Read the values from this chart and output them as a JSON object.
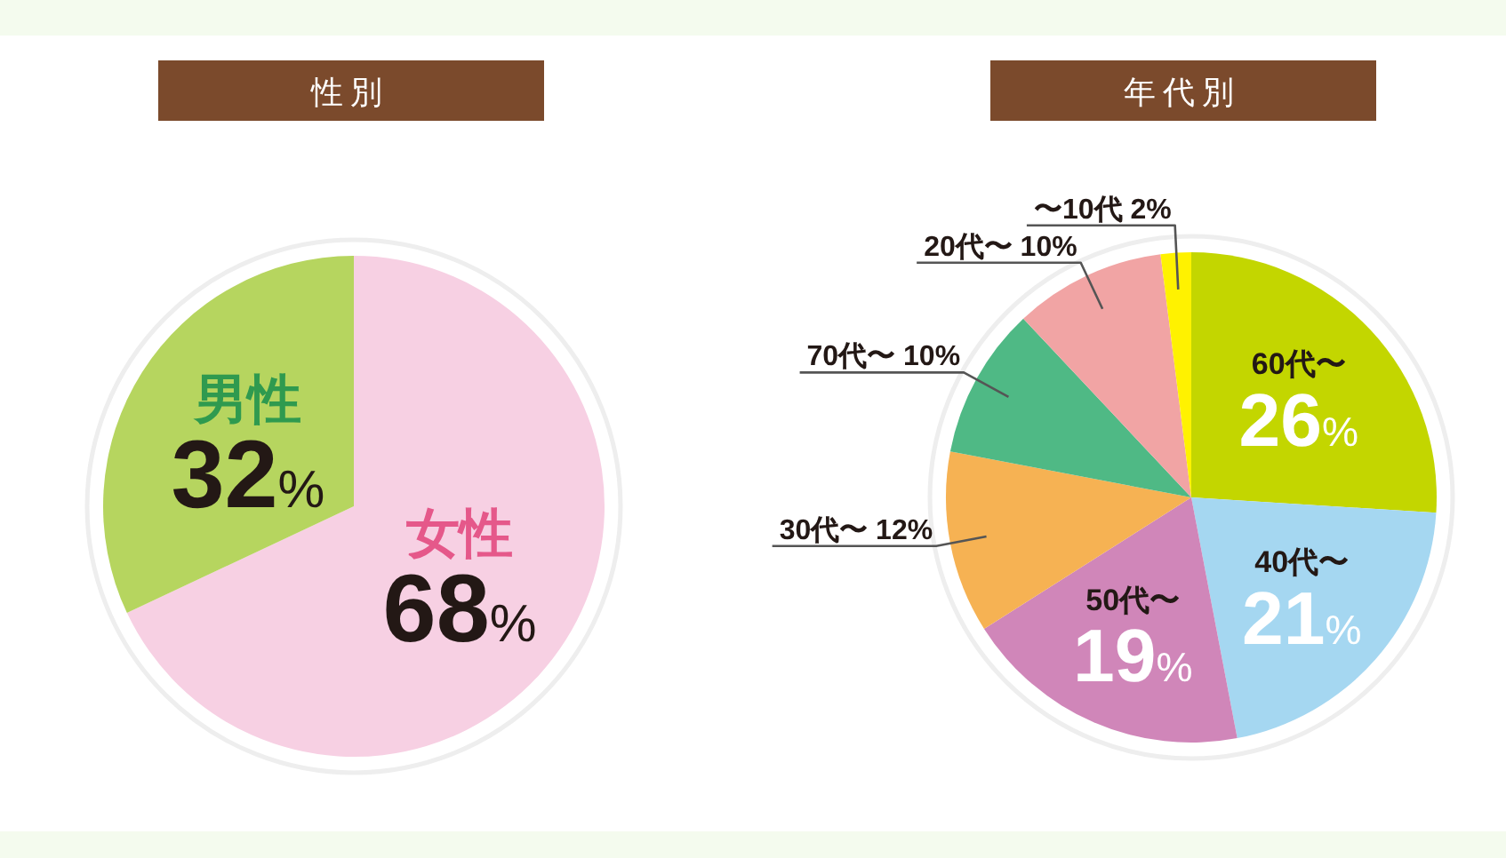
{
  "chart_data": [
    {
      "type": "pie",
      "title": "性別",
      "categories": [
        "女性",
        "男性"
      ],
      "values": [
        68,
        32
      ],
      "colors": [
        "#f7d0e3",
        "#b6d55f"
      ],
      "value_labels": [
        "68%",
        "32%"
      ]
    },
    {
      "type": "pie",
      "title": "年代別",
      "categories": [
        "60代〜",
        "40代〜",
        "50代〜",
        "30代〜",
        "70代〜",
        "20代〜",
        "〜10代"
      ],
      "values": [
        26,
        21,
        19,
        12,
        10,
        10,
        2
      ],
      "colors": [
        "#c3d600",
        "#a5d7f1",
        "#d086b9",
        "#f6b253",
        "#4fb985",
        "#f1a4a4",
        "#fff200"
      ],
      "value_labels": [
        "26%",
        "21%",
        "19%",
        "12%",
        "10%",
        "10%",
        "2%"
      ]
    }
  ]
}
